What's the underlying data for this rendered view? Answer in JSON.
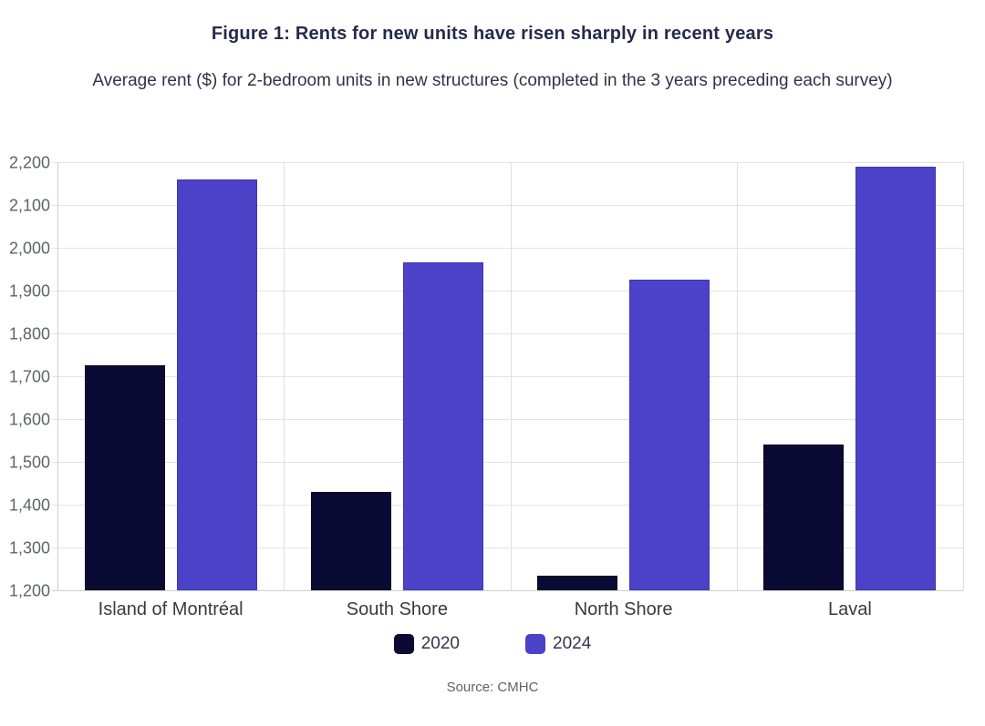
{
  "title": "Figure 1: Rents for new units have risen sharply in recent years",
  "subtitle": "Average rent ($) for 2-bedroom units in new structures (completed in the 3 years preceding each survey)",
  "source": "Source: CMHC",
  "colors": {
    "series_2020": "#0a0a35",
    "series_2024": "#4b42c8",
    "title_text": "#252a4d",
    "subtitle_text": "#2f3347",
    "grid": "#e3e3e3",
    "axis_text": "#5f6368",
    "category_text": "#3a3a3a"
  },
  "chart_data": {
    "type": "bar",
    "title": "Figure 1: Rents for new units have risen sharply in recent years",
    "subtitle": "Average rent ($) for 2-bedroom units in new structures (completed in the 3 years preceding each survey)",
    "categories": [
      "Island of Montréal",
      "South Shore",
      "North Shore",
      "Laval"
    ],
    "series": [
      {
        "name": "2020",
        "color": "#0a0a35",
        "values": [
          1725,
          1430,
          1235,
          1540
        ]
      },
      {
        "name": "2024",
        "color": "#4b42c8",
        "values": [
          2160,
          1965,
          1925,
          2190
        ]
      }
    ],
    "ylim": [
      1200,
      2200
    ],
    "ytick_step": 100,
    "ytick_labels": [
      "1,200",
      "1,300",
      "1,400",
      "1,500",
      "1,600",
      "1,700",
      "1,800",
      "1,900",
      "2,000",
      "2,100",
      "2,200"
    ],
    "grid": true,
    "legend_position": "bottom",
    "source_note": "Source: CMHC"
  }
}
